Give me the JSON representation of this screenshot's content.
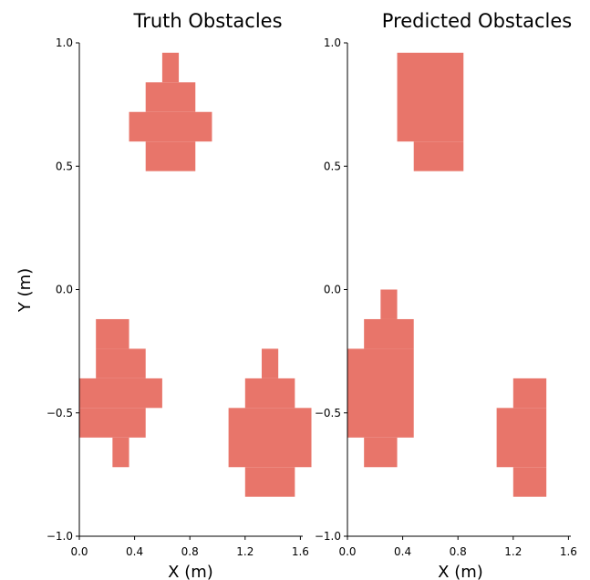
{
  "chart_data": [
    {
      "type": "heatmap",
      "title": "Truth Obstacles",
      "xlabel": "X (m)",
      "ylabel": "Y (m)",
      "xlim": [
        0.0,
        1.6
      ],
      "ylim": [
        -1.0,
        1.0
      ],
      "xticks": [
        "0.0",
        "0.4",
        "0.8",
        "1.2",
        "1.6"
      ],
      "yticks": [
        "1.0",
        "0.5",
        "0.0",
        "−0.5",
        "−1.0"
      ],
      "cell_size": 0.12,
      "color": "#e8756a",
      "cells": [
        {
          "x0": 0.6,
          "x1": 0.72,
          "y0": 0.84,
          "y1": 0.96
        },
        {
          "x0": 0.48,
          "x1": 0.84,
          "y0": 0.72,
          "y1": 0.84
        },
        {
          "x0": 0.36,
          "x1": 0.96,
          "y0": 0.6,
          "y1": 0.72
        },
        {
          "x0": 0.48,
          "x1": 0.84,
          "y0": 0.48,
          "y1": 0.6
        },
        {
          "x0": 0.12,
          "x1": 0.36,
          "y0": -0.24,
          "y1": -0.12
        },
        {
          "x0": 0.12,
          "x1": 0.48,
          "y0": -0.36,
          "y1": -0.24
        },
        {
          "x0": 0.0,
          "x1": 0.6,
          "y0": -0.48,
          "y1": -0.36
        },
        {
          "x0": 0.0,
          "x1": 0.48,
          "y0": -0.6,
          "y1": -0.48
        },
        {
          "x0": 0.24,
          "x1": 0.36,
          "y0": -0.72,
          "y1": -0.6
        },
        {
          "x0": 1.32,
          "x1": 1.44,
          "y0": -0.36,
          "y1": -0.24
        },
        {
          "x0": 1.2,
          "x1": 1.56,
          "y0": -0.48,
          "y1": -0.36
        },
        {
          "x0": 1.08,
          "x1": 1.68,
          "y0": -0.72,
          "y1": -0.48
        },
        {
          "x0": 1.2,
          "x1": 1.56,
          "y0": -0.84,
          "y1": -0.72
        }
      ]
    },
    {
      "type": "heatmap",
      "title": "Predicted Obstacles",
      "xlabel": "X (m)",
      "ylabel": "",
      "xlim": [
        0.0,
        1.6
      ],
      "ylim": [
        -1.0,
        1.0
      ],
      "xticks": [
        "0.0",
        "0.4",
        "0.8",
        "1.2",
        "1.6"
      ],
      "yticks": [
        "1.0",
        "0.5",
        "0.0",
        "−0.5",
        "−1.0"
      ],
      "cell_size": 0.12,
      "color": "#e8756a",
      "cells": [
        {
          "x0": 0.36,
          "x1": 0.84,
          "y0": 0.6,
          "y1": 0.96
        },
        {
          "x0": 0.48,
          "x1": 0.84,
          "y0": 0.48,
          "y1": 0.6
        },
        {
          "x0": 0.24,
          "x1": 0.36,
          "y0": -0.12,
          "y1": 0.0
        },
        {
          "x0": 0.12,
          "x1": 0.48,
          "y0": -0.24,
          "y1": -0.12
        },
        {
          "x0": 0.0,
          "x1": 0.48,
          "y0": -0.6,
          "y1": -0.24
        },
        {
          "x0": 0.12,
          "x1": 0.36,
          "y0": -0.72,
          "y1": -0.6
        },
        {
          "x0": 1.2,
          "x1": 1.44,
          "y0": -0.48,
          "y1": -0.36
        },
        {
          "x0": 1.08,
          "x1": 1.44,
          "y0": -0.72,
          "y1": -0.48
        },
        {
          "x0": 1.2,
          "x1": 1.44,
          "y0": -0.84,
          "y1": -0.72
        }
      ]
    }
  ]
}
